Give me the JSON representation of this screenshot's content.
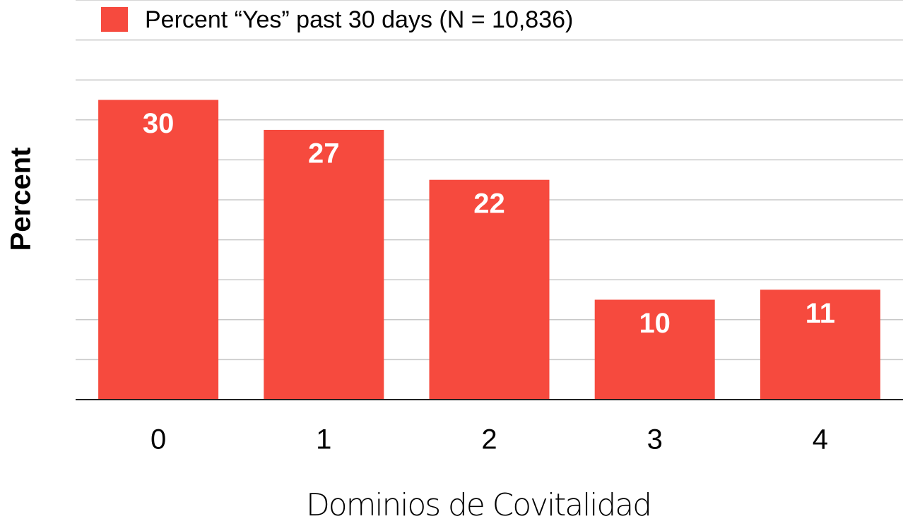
{
  "chart_data": {
    "type": "bar",
    "x_label": "Dominios de Covitalidad",
    "y_label": "Percent",
    "categories": [
      "0",
      "1",
      "2",
      "3",
      "4"
    ],
    "series": [
      {
        "name": "Percent “Yes” past 30 days (N = 10,836)",
        "color": "#f64a3e",
        "values": [
          30,
          27,
          22,
          10,
          11
        ]
      }
    ],
    "ylim": [
      0,
      40
    ],
    "yticks": [
      0,
      4,
      8,
      12,
      16,
      20,
      24,
      28,
      32,
      36,
      40
    ],
    "grid": true,
    "legend": "top"
  }
}
